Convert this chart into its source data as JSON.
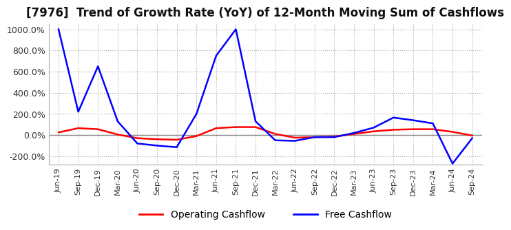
{
  "title": "[7976]  Trend of Growth Rate (YoY) of 12-Month Moving Sum of Cashflows",
  "title_fontsize": 12,
  "ylim": [
    -280,
    1050
  ],
  "yticks": [
    -200,
    0,
    200,
    400,
    600,
    800,
    1000
  ],
  "background_color": "#ffffff",
  "grid_color": "#aaaaaa",
  "legend_labels": [
    "Operating Cashflow",
    "Free Cashflow"
  ],
  "line_colors": [
    "#ff0000",
    "#0000ff"
  ],
  "x_labels": [
    "Jun-19",
    "Sep-19",
    "Dec-19",
    "Mar-20",
    "Jun-20",
    "Sep-20",
    "Dec-20",
    "Mar-21",
    "Jun-21",
    "Sep-21",
    "Dec-21",
    "Mar-22",
    "Jun-22",
    "Sep-22",
    "Dec-22",
    "Mar-23",
    "Jun-23",
    "Sep-23",
    "Dec-23",
    "Mar-24",
    "Jun-24",
    "Sep-24"
  ],
  "operating_cashflow": [
    25,
    65,
    55,
    5,
    -30,
    -40,
    -45,
    -10,
    65,
    75,
    75,
    10,
    -25,
    -20,
    -15,
    10,
    35,
    50,
    55,
    55,
    30,
    -5
  ],
  "free_cashflow": [
    1000,
    220,
    650,
    130,
    -80,
    -100,
    -115,
    200,
    750,
    1000,
    130,
    -50,
    -55,
    -20,
    -20,
    20,
    70,
    165,
    140,
    110,
    -270,
    -30
  ]
}
